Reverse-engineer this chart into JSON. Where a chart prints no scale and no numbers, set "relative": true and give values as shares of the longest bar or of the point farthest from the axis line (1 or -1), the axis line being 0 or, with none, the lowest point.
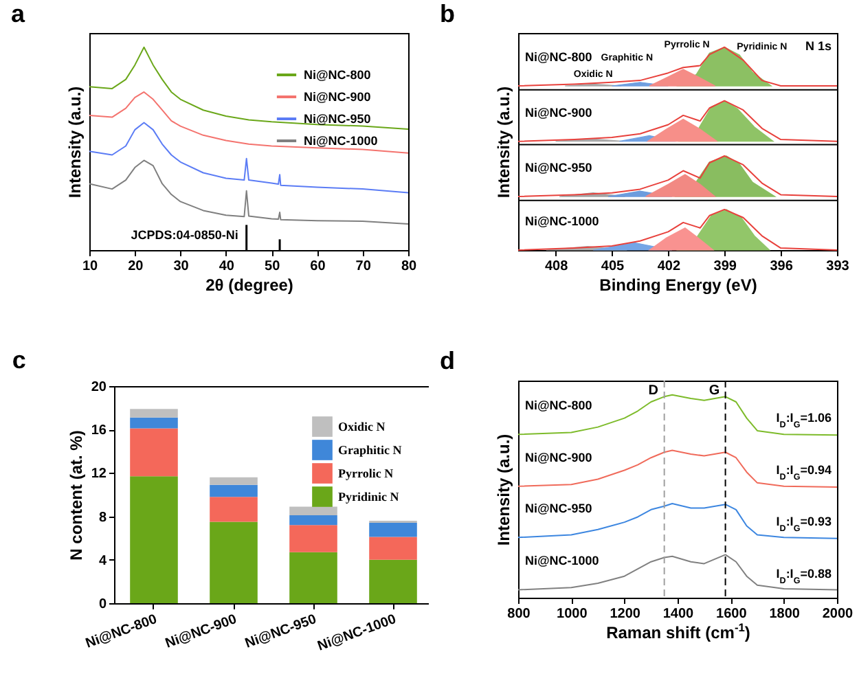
{
  "chart_data": [
    {
      "type": "line",
      "title": "a",
      "xlabel": "2θ (degree)",
      "ylabel": "Intensity (a.u.)",
      "relative": true,
      "xlim": [
        10,
        80
      ],
      "xticks": [
        10,
        20,
        30,
        40,
        50,
        60,
        70,
        80
      ],
      "legend": "top right",
      "series": [
        {
          "name": "Ni@NC-800",
          "color": "#6aa719",
          "x": [
            10,
            15,
            18,
            20,
            22,
            24,
            26,
            28,
            30,
            35,
            40,
            45,
            50,
            60,
            70,
            80
          ],
          "values": [
            0.805,
            0.796,
            0.841,
            0.912,
            1,
            0.912,
            0.841,
            0.779,
            0.743,
            0.69,
            0.66,
            0.642,
            0.632,
            0.619,
            0.611,
            0.596
          ]
        },
        {
          "name": "Ni@NC-900",
          "color": "#f4736e",
          "x": [
            10,
            15,
            18,
            20,
            22,
            24,
            26,
            28,
            30,
            35,
            40,
            45,
            50,
            60,
            70,
            80
          ],
          "values": [
            0.664,
            0.655,
            0.699,
            0.752,
            0.779,
            0.743,
            0.69,
            0.637,
            0.611,
            0.566,
            0.54,
            0.522,
            0.513,
            0.504,
            0.496,
            0.478
          ]
        },
        {
          "name": "Ni@NC-950",
          "color": "#5b7cf5",
          "x": [
            10,
            15,
            18,
            20,
            22,
            24,
            26,
            28,
            30,
            35,
            40,
            44,
            44.5,
            45,
            50,
            51.5,
            51.8,
            52,
            60,
            70,
            80
          ],
          "values": [
            0.487,
            0.469,
            0.513,
            0.593,
            0.628,
            0.593,
            0.522,
            0.469,
            0.434,
            0.381,
            0.354,
            0.345,
            0.451,
            0.345,
            0.33,
            0.325,
            0.372,
            0.319,
            0.31,
            0.301,
            0.283
          ]
        },
        {
          "name": "Ni@NC-1000",
          "color": "#7f7f7f",
          "x": [
            10,
            15,
            18,
            20,
            22,
            24,
            26,
            28,
            30,
            35,
            40,
            44,
            44.5,
            45,
            50,
            51.5,
            51.8,
            52,
            60,
            70,
            80
          ],
          "values": [
            0.327,
            0.301,
            0.345,
            0.407,
            0.442,
            0.416,
            0.327,
            0.274,
            0.239,
            0.195,
            0.172,
            0.165,
            0.292,
            0.168,
            0.154,
            0.152,
            0.186,
            0.15,
            0.145,
            0.142,
            0.129
          ]
        },
        {
          "name": "JCPDS:04-0850-Ni",
          "type": "bar",
          "color": "#000000",
          "x": [
            44.5,
            51.8
          ],
          "values": [
            0.124,
            0.053
          ]
        }
      ]
    },
    {
      "type": "line",
      "title": "b",
      "xlabel": "Binding Energy (eV)",
      "ylabel": "Intensity (a.u.)",
      "relative": true,
      "xlim": [
        410,
        393
      ],
      "xticks": [
        408,
        405,
        402,
        399,
        396,
        393
      ],
      "annotations": [
        {
          "text": "Oxidic N",
          "x": 406,
          "y": 0.818
        },
        {
          "text": "Graphitic N",
          "x": 404.2,
          "y": 0.827
        },
        {
          "text": "Pyrrolic N",
          "x": 401,
          "y": 0.891
        },
        {
          "text": "Pyridinic N",
          "x": 397,
          "y": 0.88
        },
        "N 1s"
      ],
      "ref_lines": [
        {
          "axis": "y",
          "value": 0.79,
          "color": "#000000"
        },
        {
          "axis": "y",
          "value": 0.52,
          "color": "#000000"
        },
        {
          "axis": "y",
          "value": 0.245,
          "color": "#000000"
        }
      ],
      "series": [
        {
          "type": "area",
          "color": "#a6a6a6",
          "x": [
            407.5,
            406,
            404.5
          ],
          "values": [
            0.809,
            0.818,
            0.809
          ]
        },
        {
          "type": "area",
          "color": "#6f9fe0",
          "x": [
            405,
            403.5,
            402
          ],
          "values": [
            0.809,
            0.827,
            0.809
          ]
        },
        {
          "type": "area",
          "color": "#8cc063",
          "x": [
            401.5,
            400.5,
            399.8,
            399,
            398.2,
            397.5,
            396.5
          ],
          "values": [
            0.809,
            0.866,
            0.971,
            1,
            0.962,
            0.876,
            0.809
          ]
        },
        {
          "type": "area",
          "color": "#f58c86",
          "x": [
            403,
            402,
            401.2,
            400.4,
            399.5
          ],
          "values": [
            0.809,
            0.854,
            0.891,
            0.854,
            0.809
          ]
        },
        {
          "type": "area",
          "color": "#a9a9a9",
          "x": [
            408,
            406.2,
            404.4
          ],
          "values": [
            0.536,
            0.549,
            0.536
          ]
        },
        {
          "type": "area",
          "color": "#72a2e3",
          "x": [
            404.6,
            403,
            401.6
          ],
          "values": [
            0.536,
            0.564,
            0.536
          ]
        },
        {
          "type": "area",
          "color": "#8fc366",
          "x": [
            401.4,
            400.4,
            399.7,
            399,
            398.3,
            397.4,
            396.4
          ],
          "values": [
            0.536,
            0.596,
            0.706,
            0.736,
            0.696,
            0.606,
            0.536
          ]
        },
        {
          "type": "area",
          "color": "#f78f89",
          "x": [
            403.1,
            402.1,
            401.2,
            400.3,
            399.4
          ],
          "values": [
            0.536,
            0.596,
            0.645,
            0.596,
            0.536
          ]
        },
        {
          "type": "area",
          "color": "#a3a3a3",
          "x": [
            407.8,
            406,
            404.3
          ],
          "values": [
            0.264,
            0.282,
            0.264
          ]
        },
        {
          "type": "area",
          "color": "#6c9cdd",
          "x": [
            405.2,
            403.5,
            401.8
          ],
          "values": [
            0.264,
            0.291,
            0.264
          ]
        },
        {
          "type": "area",
          "color": "#89bd60",
          "x": [
            401.6,
            400.6,
            399.8,
            398.9,
            398.2,
            397.5,
            396.3
          ],
          "values": [
            0.264,
            0.324,
            0.434,
            0.464,
            0.424,
            0.334,
            0.264
          ]
        },
        {
          "type": "area",
          "color": "#f28983",
          "x": [
            403.2,
            402,
            401.1,
            400.3,
            399.5
          ],
          "values": [
            0.264,
            0.324,
            0.373,
            0.324,
            0.264
          ]
        },
        {
          "type": "area",
          "color": "#acacac",
          "x": [
            408.5,
            406.3,
            404.2
          ],
          "values": [
            0,
            0.018,
            0
          ]
        },
        {
          "type": "area",
          "color": "#75a5e6",
          "x": [
            406,
            403.8,
            401.8
          ],
          "values": [
            0,
            0.036,
            0
          ]
        },
        {
          "type": "area",
          "color": "#92c669",
          "x": [
            401.5,
            400.5,
            399.7,
            398.9,
            398.1,
            397.4,
            396.6
          ],
          "values": [
            0,
            0.06,
            0.17,
            0.2,
            0.16,
            0.07,
            0
          ]
        },
        {
          "type": "area",
          "color": "#f99290",
          "x": [
            403,
            402.1,
            401.1,
            400.4,
            399.6
          ],
          "values": [
            0,
            0.06,
            0.109,
            0.06,
            0
          ]
        },
        {
          "name": "Ni@NC-800",
          "color": "#e8413c",
          "x": [
            410,
            407,
            405,
            403.5,
            402,
            401.2,
            400.3,
            399.8,
            399,
            398,
            397,
            396,
            393
          ],
          "values": [
            0.809,
            0.818,
            0.827,
            0.836,
            0.873,
            0.9,
            0.909,
            0.964,
            1,
            0.936,
            0.836,
            0.809,
            0.809
          ]
        },
        {
          "name": "Ni@NC-900",
          "color": "#e8413c",
          "x": [
            410,
            407,
            405,
            403.5,
            402,
            401.2,
            400.3,
            399.8,
            399,
            398,
            397,
            396,
            393
          ],
          "values": [
            0.536,
            0.545,
            0.555,
            0.573,
            0.618,
            0.664,
            0.636,
            0.7,
            0.736,
            0.69,
            0.6,
            0.545,
            0.536
          ]
        },
        {
          "name": "Ni@NC-950",
          "color": "#e8413c",
          "x": [
            410,
            407,
            405,
            403.5,
            402,
            401.2,
            400.3,
            399.8,
            399,
            398,
            397,
            396,
            393
          ],
          "values": [
            0.264,
            0.273,
            0.282,
            0.3,
            0.345,
            0.391,
            0.355,
            0.43,
            0.464,
            0.42,
            0.33,
            0.273,
            0.264
          ]
        },
        {
          "name": "Ni@NC-1000",
          "color": "#e8413c",
          "x": [
            410,
            407,
            405,
            403.5,
            402,
            401.2,
            400.3,
            399.8,
            399,
            398,
            397,
            396,
            393
          ],
          "values": [
            0,
            0.01,
            0.02,
            0.045,
            0.09,
            0.136,
            0.109,
            0.17,
            0.2,
            0.16,
            0.07,
            0.01,
            0
          ]
        }
      ]
    },
    {
      "type": "bar",
      "title": "c",
      "ylabel": "N content (at. %)",
      "stacked": true,
      "categories": [
        "Ni@NC-800",
        "Ni@NC-900",
        "Ni@NC-950",
        "Ni@NC-1000"
      ],
      "ylim": [
        0,
        20
      ],
      "yticks": [
        0,
        4,
        8,
        12,
        16,
        20
      ],
      "legend": "top right",
      "series": [
        {
          "name": "Pyridinic N",
          "color": "#6aa719",
          "values": [
            11.7,
            7.5,
            4.7,
            4.0
          ]
        },
        {
          "name": "Pyrrolic N",
          "color": "#f4685a",
          "values": [
            4.4,
            2.3,
            2.5,
            2.1
          ]
        },
        {
          "name": "Graphitic N",
          "color": "#3f87d9",
          "values": [
            1.0,
            1.1,
            0.9,
            1.3
          ]
        },
        {
          "name": "Oxidic N",
          "color": "#bfbfbf",
          "values": [
            0.8,
            0.7,
            0.8,
            0.2
          ]
        }
      ]
    },
    {
      "type": "line",
      "title": "d",
      "xlabel": "Raman shift (cm$^{-1}$)",
      "ylabel": "Intensity (a.u.)",
      "relative": true,
      "xlim": [
        800,
        2000
      ],
      "xticks": [
        800,
        1000,
        1200,
        1400,
        1600,
        1800,
        2000
      ],
      "annotations": [
        "I$_{D}$:I$_{G}$=1.06",
        "I$_{D}$:I$_{G}$=0.94",
        "I$_{D}$:I$_{G}$=0.93",
        "I$_{D}$:I$_{G}$=0.88"
      ],
      "ref_lines": [
        {
          "axis": "x",
          "value": 1350,
          "label": "D",
          "color": "#a0a0a0",
          "line_style": "dashed"
        },
        {
          "axis": "x",
          "value": 1580,
          "label": "G",
          "color": "#000000",
          "line_style": "dashed"
        }
      ],
      "series": [
        {
          "name": "Ni@NC-800",
          "color": "#7dbb2a",
          "x": [
            800,
            1000,
            1100,
            1200,
            1250,
            1300,
            1350,
            1380,
            1450,
            1500,
            1580,
            1620,
            1660,
            1700,
            1800,
            2000
          ],
          "values": [
            0.805,
            0.814,
            0.841,
            0.885,
            0.92,
            0.965,
            0.991,
            1,
            0.982,
            0.973,
            0.991,
            0.965,
            0.885,
            0.823,
            0.805,
            0.802
          ]
        },
        {
          "name": "Ni@NC-900",
          "color": "#f06a5a",
          "x": [
            800,
            1000,
            1100,
            1200,
            1250,
            1300,
            1350,
            1380,
            1450,
            1500,
            1580,
            1620,
            1660,
            1700,
            1800,
            2000
          ],
          "values": [
            0.549,
            0.558,
            0.584,
            0.628,
            0.655,
            0.69,
            0.717,
            0.726,
            0.708,
            0.699,
            0.717,
            0.69,
            0.619,
            0.566,
            0.549,
            0.545
          ]
        },
        {
          "name": "Ni@NC-950",
          "color": "#3c86e0",
          "x": [
            800,
            1000,
            1100,
            1200,
            1250,
            1300,
            1350,
            1380,
            1450,
            1500,
            1580,
            1620,
            1660,
            1700,
            1800,
            2000
          ],
          "values": [
            0.297,
            0.31,
            0.336,
            0.372,
            0.398,
            0.434,
            0.451,
            0.464,
            0.442,
            0.442,
            0.46,
            0.434,
            0.354,
            0.31,
            0.297,
            0.292
          ]
        },
        {
          "name": "Ni@NC-1000",
          "color": "#808080",
          "x": [
            800,
            1000,
            1100,
            1200,
            1250,
            1300,
            1350,
            1380,
            1450,
            1500,
            1580,
            1620,
            1660,
            1700,
            1800,
            2000
          ],
          "values": [
            0.039,
            0.05,
            0.071,
            0.106,
            0.142,
            0.177,
            0.198,
            0.204,
            0.177,
            0.168,
            0.212,
            0.177,
            0.106,
            0.062,
            0.044,
            0.039
          ]
        }
      ]
    }
  ]
}
